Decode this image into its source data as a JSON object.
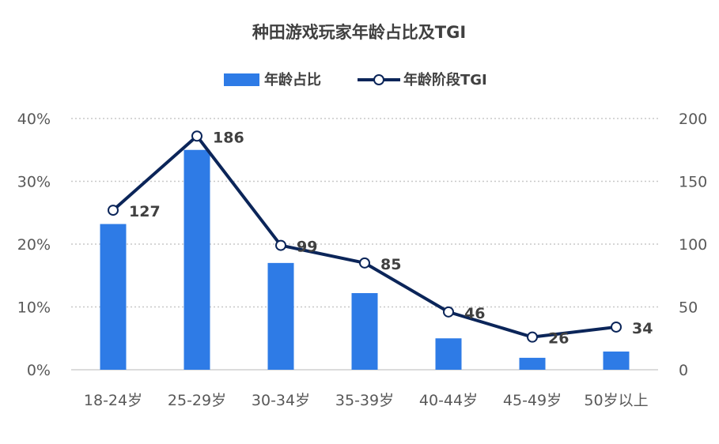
{
  "chart_data": {
    "type": "bar",
    "title": "种田游戏玩家年龄占比及TGI",
    "categories": [
      "18-24岁",
      "25-29岁",
      "30-34岁",
      "35-39岁",
      "40-44岁",
      "45-49岁",
      "50岁以上"
    ],
    "series": [
      {
        "name": "年龄占比",
        "type": "bar",
        "axis": "left",
        "color": "#2E7BE6",
        "values": [
          23.2,
          35.0,
          17.0,
          12.2,
          5.0,
          1.9,
          2.9
        ]
      },
      {
        "name": "年龄阶段TGI",
        "type": "line",
        "axis": "right",
        "color": "#0B2559",
        "values": [
          127,
          186,
          99,
          85,
          46,
          26,
          34
        ]
      }
    ],
    "y_left": {
      "ylim": [
        0,
        40
      ],
      "ticks": [
        "0%",
        "10%",
        "20%",
        "30%",
        "40%"
      ]
    },
    "y_right": {
      "ylim": [
        0,
        200
      ],
      "ticks": [
        "0",
        "50",
        "100",
        "150",
        "200"
      ]
    },
    "data_labels": [
      "127",
      "186",
      "99",
      "85",
      "46",
      "26",
      "34"
    ],
    "grid": true,
    "legend": "top-center"
  }
}
